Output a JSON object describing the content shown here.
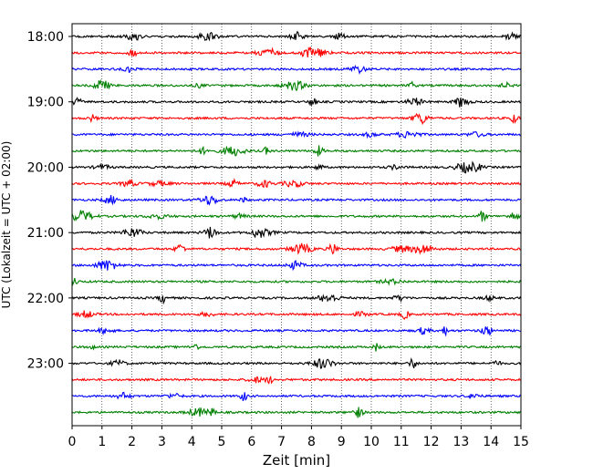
{
  "chart_data": {
    "type": "line",
    "title": "",
    "xlabel": "Zeit  [min]",
    "ylabel": "UTC (Lokalzeit = UTC + 02:00)",
    "xlim": [
      0,
      15
    ],
    "x_ticks": [
      "0",
      "1",
      "2",
      "3",
      "4",
      "5",
      "6",
      "7",
      "8",
      "9",
      "10",
      "11",
      "12",
      "13",
      "14",
      "15"
    ],
    "y_tick_labels": [
      "18:00",
      "19:00",
      "20:00",
      "21:00",
      "22:00",
      "23:00"
    ],
    "grid": "vertical dotted",
    "trace_minutes_per_line": 15,
    "traces_per_hour": 4,
    "start_time": "18:00",
    "end_time": "24:00",
    "trace_colors": [
      "#000000",
      "#ff0000",
      "#0000ff",
      "#008000"
    ],
    "traces": [
      {
        "time": "18:00",
        "color": "#000000"
      },
      {
        "time": "18:15",
        "color": "#ff0000"
      },
      {
        "time": "18:30",
        "color": "#0000ff"
      },
      {
        "time": "18:45",
        "color": "#008000"
      },
      {
        "time": "19:00",
        "color": "#000000"
      },
      {
        "time": "19:15",
        "color": "#ff0000"
      },
      {
        "time": "19:30",
        "color": "#0000ff"
      },
      {
        "time": "19:45",
        "color": "#008000"
      },
      {
        "time": "20:00",
        "color": "#000000"
      },
      {
        "time": "20:15",
        "color": "#ff0000"
      },
      {
        "time": "20:30",
        "color": "#0000ff"
      },
      {
        "time": "20:45",
        "color": "#008000"
      },
      {
        "time": "21:00",
        "color": "#000000"
      },
      {
        "time": "21:15",
        "color": "#ff0000"
      },
      {
        "time": "21:30",
        "color": "#0000ff"
      },
      {
        "time": "21:45",
        "color": "#008000"
      },
      {
        "time": "22:00",
        "color": "#000000"
      },
      {
        "time": "22:15",
        "color": "#ff0000"
      },
      {
        "time": "22:30",
        "color": "#0000ff"
      },
      {
        "time": "22:45",
        "color": "#008000"
      },
      {
        "time": "23:00",
        "color": "#000000"
      },
      {
        "time": "23:15",
        "color": "#ff0000"
      },
      {
        "time": "23:30",
        "color": "#0000ff"
      },
      {
        "time": "23:45",
        "color": "#008000"
      }
    ]
  }
}
